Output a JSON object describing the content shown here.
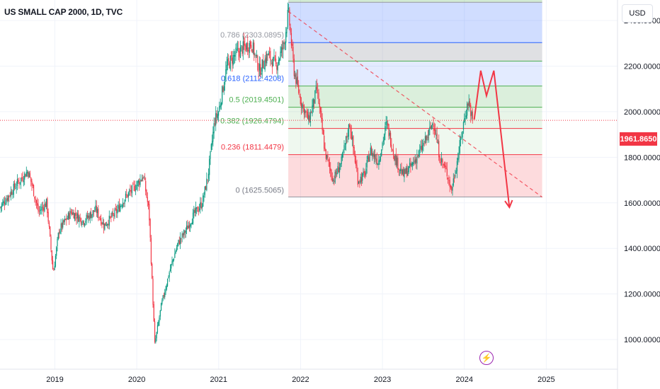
{
  "header": {
    "title": "US SMALL CAP 2000, 1D, TVC",
    "currency": "USD"
  },
  "price_axis": {
    "current_price_label": "1961.8650",
    "ticks": [
      "2400.0000",
      "2200.0000",
      "2000.0000",
      "1800.0000",
      "1600.0000",
      "1400.0000",
      "1200.0000",
      "1000.0000"
    ]
  },
  "time_axis": {
    "ticks": [
      "2019",
      "2020",
      "2021",
      "2022",
      "2023",
      "2024",
      "2025"
    ]
  },
  "event_icon": "lightning-icon",
  "colors": {
    "up": "#089981",
    "down": "#f23645",
    "fib_0_786": "#9598a1",
    "fib_0_618": "#2962ff",
    "fib_0_5": "#4caf50",
    "fib_0_382": "#4caf50",
    "fib_0_236": "#f23645",
    "forecast": "#f23645",
    "trendline": "#f23645"
  },
  "chart_data": {
    "type": "candlestick",
    "title": "US SMALL CAP 2000, 1D, TVC",
    "ylim": [
      870,
      2490
    ],
    "xlim": [
      2018.33,
      2025.87
    ],
    "fibonacci": {
      "from_date": 2021.85,
      "to_date": 2024.95,
      "levels": [
        {
          "ratio": 0.786,
          "value": 2303.0895,
          "label": "0.786 (2303.0895)"
        },
        {
          "ratio": 0.618,
          "value": 2112.4208,
          "label": "0.618 (2112.4208)"
        },
        {
          "ratio": 0.5,
          "value": 2019.4501,
          "label": "0.5 (2019.4501)"
        },
        {
          "ratio": 0.382,
          "value": 1926.4794,
          "label": "0.382 (1926.4794)"
        },
        {
          "ratio": 0.236,
          "value": 1811.4479,
          "label": "0.236 (1811.4479)"
        },
        {
          "ratio": 0,
          "value": 1625.5065,
          "label": "0 (1625.5065)"
        }
      ],
      "unlabeled_levels": [
        2480,
        2222
      ]
    },
    "trendline": {
      "from": [
        2021.85,
        2440
      ],
      "to": [
        2024.95,
        1625
      ]
    },
    "forecast_path": [
      [
        2024.12,
        1965
      ],
      [
        2024.2,
        2180
      ],
      [
        2024.27,
        2070
      ],
      [
        2024.36,
        2180
      ],
      [
        2024.55,
        1580
      ]
    ],
    "price_series": [
      [
        2018.33,
        1580
      ],
      [
        2018.45,
        1640
      ],
      [
        2018.55,
        1690
      ],
      [
        2018.67,
        1740
      ],
      [
        2018.72,
        1680
      ],
      [
        2018.8,
        1560
      ],
      [
        2018.9,
        1600
      ],
      [
        2018.98,
        1290
      ],
      [
        2019.05,
        1480
      ],
      [
        2019.2,
        1560
      ],
      [
        2019.35,
        1520
      ],
      [
        2019.5,
        1570
      ],
      [
        2019.6,
        1500
      ],
      [
        2019.75,
        1560
      ],
      [
        2019.85,
        1620
      ],
      [
        2020.0,
        1680
      ],
      [
        2020.08,
        1720
      ],
      [
        2020.15,
        1560
      ],
      [
        2020.22,
        980
      ],
      [
        2020.3,
        1150
      ],
      [
        2020.4,
        1300
      ],
      [
        2020.5,
        1420
      ],
      [
        2020.6,
        1480
      ],
      [
        2020.7,
        1550
      ],
      [
        2020.8,
        1600
      ],
      [
        2020.87,
        1720
      ],
      [
        2020.95,
        1960
      ],
      [
        2021.0,
        2000
      ],
      [
        2021.1,
        2200
      ],
      [
        2021.2,
        2250
      ],
      [
        2021.3,
        2280
      ],
      [
        2021.4,
        2300
      ],
      [
        2021.5,
        2180
      ],
      [
        2021.6,
        2250
      ],
      [
        2021.7,
        2200
      ],
      [
        2021.8,
        2300
      ],
      [
        2021.85,
        2440
      ],
      [
        2021.92,
        2180
      ],
      [
        2022.0,
        2050
      ],
      [
        2022.1,
        1960
      ],
      [
        2022.2,
        2100
      ],
      [
        2022.3,
        1820
      ],
      [
        2022.4,
        1700
      ],
      [
        2022.5,
        1780
      ],
      [
        2022.6,
        1950
      ],
      [
        2022.7,
        1700
      ],
      [
        2022.78,
        1720
      ],
      [
        2022.85,
        1830
      ],
      [
        2022.95,
        1780
      ],
      [
        2023.05,
        1950
      ],
      [
        2023.15,
        1800
      ],
      [
        2023.25,
        1720
      ],
      [
        2023.35,
        1760
      ],
      [
        2023.45,
        1820
      ],
      [
        2023.55,
        1890
      ],
      [
        2023.62,
        1960
      ],
      [
        2023.7,
        1800
      ],
      [
        2023.8,
        1720
      ],
      [
        2023.84,
        1650
      ],
      [
        2023.92,
        1800
      ],
      [
        2024.0,
        1970
      ],
      [
        2024.05,
        2050
      ],
      [
        2024.1,
        1960
      ]
    ]
  }
}
